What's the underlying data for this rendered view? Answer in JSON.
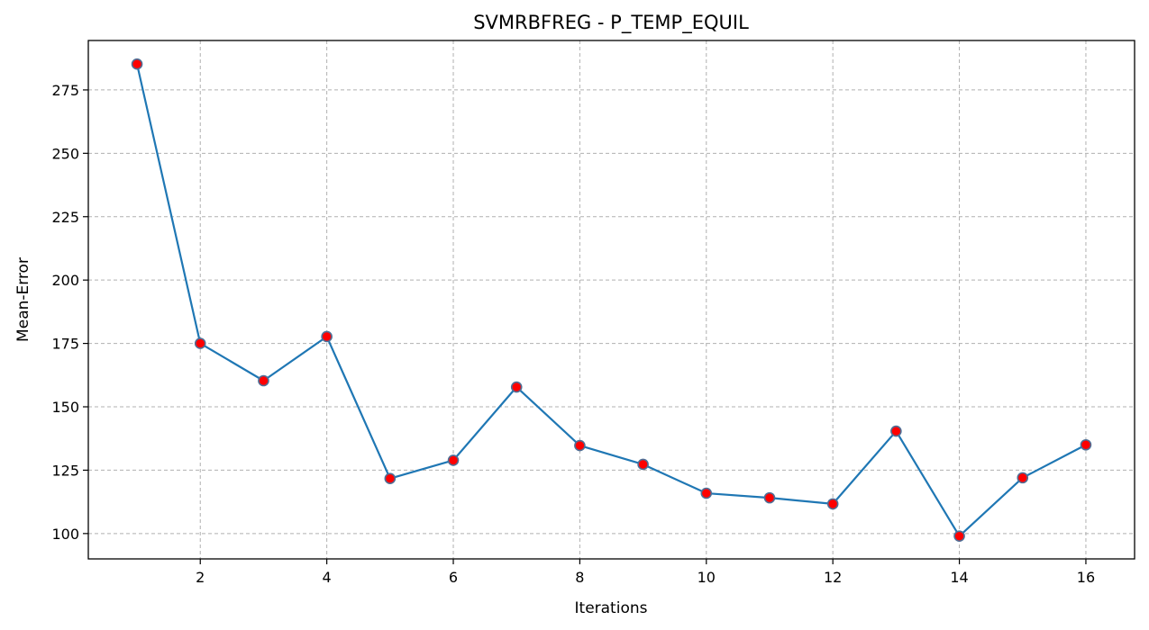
{
  "chart_data": {
    "type": "line",
    "title": "SVMRBFREG - P_TEMP_EQUIL",
    "xlabel": "Iterations",
    "ylabel": "Mean-Error",
    "x": [
      1,
      2,
      3,
      4,
      5,
      6,
      7,
      8,
      9,
      10,
      11,
      12,
      13,
      14,
      15,
      16
    ],
    "series": [
      {
        "values": [
          285.2,
          175.0,
          160.3,
          177.7,
          121.7,
          128.9,
          157.8,
          134.7,
          127.3,
          115.9,
          114.1,
          111.7,
          140.4,
          99.0,
          122.0,
          135.0
        ]
      }
    ],
    "xlim": [
      0.23,
      16.77
    ],
    "ylim": [
      90,
      294.5
    ],
    "xticks": [
      2,
      4,
      6,
      8,
      10,
      12,
      14,
      16
    ],
    "yticks": [
      100,
      125,
      150,
      175,
      200,
      225,
      250,
      275
    ],
    "grid": true,
    "grid_style": "dashed",
    "line_color": "#1f77b4",
    "marker_face_color": "#ff0000",
    "marker_edge_color": "#4f6f96"
  }
}
